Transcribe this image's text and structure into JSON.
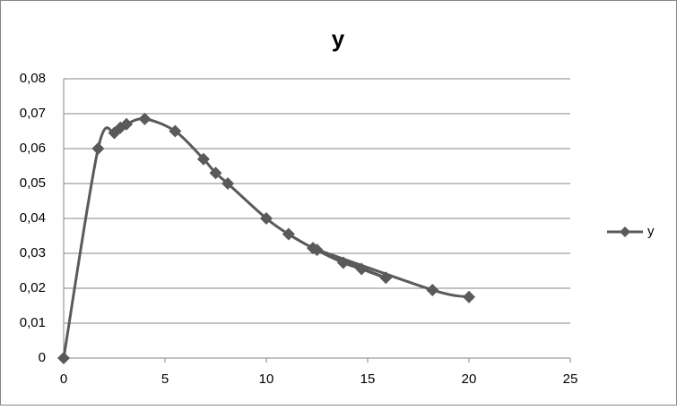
{
  "chart_data": {
    "type": "scatter",
    "title": "y",
    "series": [
      {
        "name": "y",
        "color": "#5a5a5a",
        "x": [
          0,
          1.7,
          2.5,
          2.8,
          3.1,
          4,
          5.5,
          6.9,
          7.5,
          8.1,
          10,
          11.1,
          12.3,
          13.8,
          14.7,
          15.9,
          12.5,
          18.2,
          20
        ],
        "values": [
          0,
          0.06,
          0.0645,
          0.066,
          0.067,
          0.0685,
          0.065,
          0.057,
          0.053,
          0.05,
          0.04,
          0.0355,
          0.0315,
          0.0273,
          0.0255,
          0.023,
          0.031,
          0.0195,
          0.0175
        ]
      }
    ],
    "xlim": [
      0,
      25
    ],
    "xticks": [
      0,
      5,
      10,
      15,
      20,
      25
    ],
    "ylim": [
      0,
      0.08
    ],
    "yticks": [
      0,
      {
        "value": 0.01,
        "label": "0,01"
      },
      {
        "value": 0.02,
        "label": "0,02"
      },
      {
        "value": 0.03,
        "label": "0,03"
      },
      {
        "value": 0.04,
        "label": "0,04"
      },
      {
        "value": 0.05,
        "label": "0,05"
      },
      {
        "value": 0.06,
        "label": "0,06"
      },
      {
        "value": 0.07,
        "label": "0,07"
      },
      {
        "value": 0.08,
        "label": "0,08"
      }
    ],
    "grid": true,
    "smooth": true,
    "legend": "right"
  }
}
